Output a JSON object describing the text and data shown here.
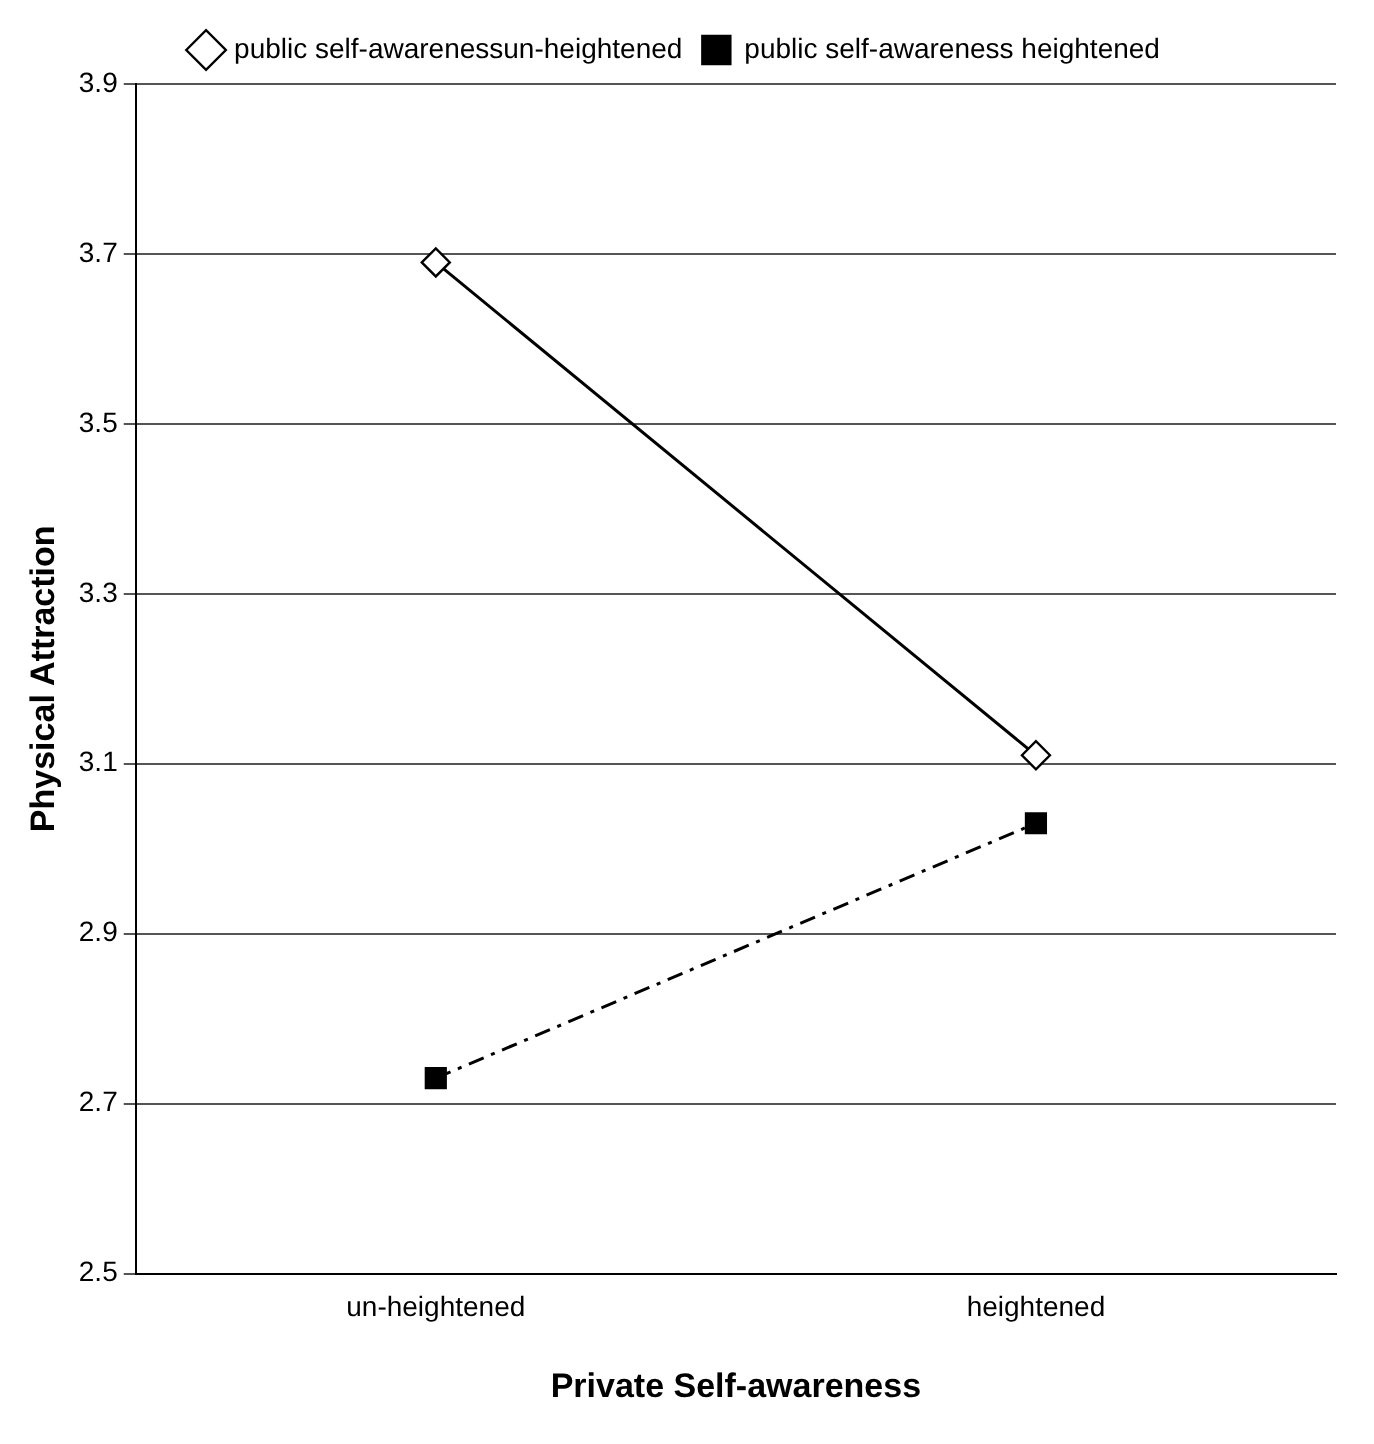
{
  "chart_data": {
    "type": "line",
    "xlabel": "Private Self-awareness",
    "ylabel": "Physical Attraction",
    "categories": [
      "un-heightened",
      "heightened"
    ],
    "series": [
      {
        "name": "public self-awarenessun-heightened",
        "color": "#000000",
        "values": [
          3.69,
          3.11
        ],
        "marker": "diamond",
        "line_style": "solid"
      },
      {
        "name": "public self-awareness heightened",
        "color": "#000000",
        "values": [
          2.73,
          3.03
        ],
        "marker": "square",
        "line_style": "dashed"
      }
    ],
    "ylim": [
      2.5,
      3.9
    ],
    "yticks": [
      2.5,
      2.7,
      2.9,
      3.1,
      3.3,
      3.5,
      3.7,
      3.9
    ],
    "grid": "y",
    "legend": "top"
  }
}
